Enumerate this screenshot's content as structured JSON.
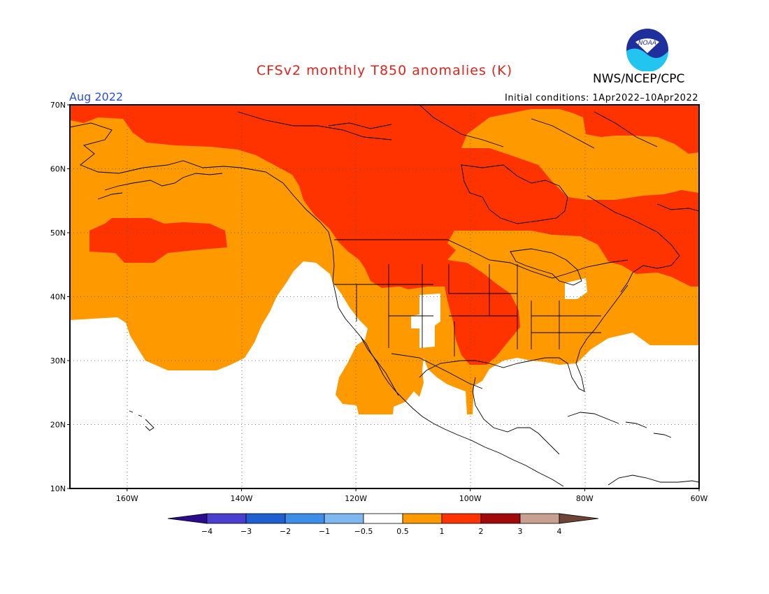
{
  "title": "CFSv2 monthly T850 anomalies (K)",
  "agency": "NWS/NCEP/CPC",
  "logo_text": "NOAA",
  "month": "Aug 2022",
  "initial_conditions": "Initial conditions: 1Apr2022–10Apr2022",
  "map": {
    "lon_range": [
      -170,
      -60
    ],
    "lat_range": [
      10,
      70
    ],
    "lat_ticks": [
      {
        "value": 70,
        "label": "70N"
      },
      {
        "value": 60,
        "label": "60N"
      },
      {
        "value": 50,
        "label": "50N"
      },
      {
        "value": 40,
        "label": "40N"
      },
      {
        "value": 30,
        "label": "30N"
      },
      {
        "value": 20,
        "label": "20N"
      },
      {
        "value": 10,
        "label": "10N"
      }
    ],
    "lon_ticks": [
      {
        "value": -160,
        "label": "160W"
      },
      {
        "value": -140,
        "label": "140W"
      },
      {
        "value": -120,
        "label": "120W"
      },
      {
        "value": -100,
        "label": "100W"
      },
      {
        "value": -80,
        "label": "80W"
      },
      {
        "value": -60,
        "label": "60W"
      }
    ],
    "colors": {
      "band_0.5_1": "#ff9900",
      "band_1_2": "#ff3300",
      "neutral": "#ffffff"
    }
  },
  "colorbar": {
    "labels": [
      "−4",
      "−3",
      "−2",
      "−1",
      "−0.5",
      "0.5",
      "1",
      "2",
      "3",
      "4"
    ],
    "colors": [
      "#2a0c8c",
      "#4b3fcf",
      "#1f5fcf",
      "#3c8ee8",
      "#7fb8f0",
      "#ffffff",
      "#ff9900",
      "#ff3300",
      "#a00a0a",
      "#c8a090",
      "#6e4436"
    ]
  }
}
